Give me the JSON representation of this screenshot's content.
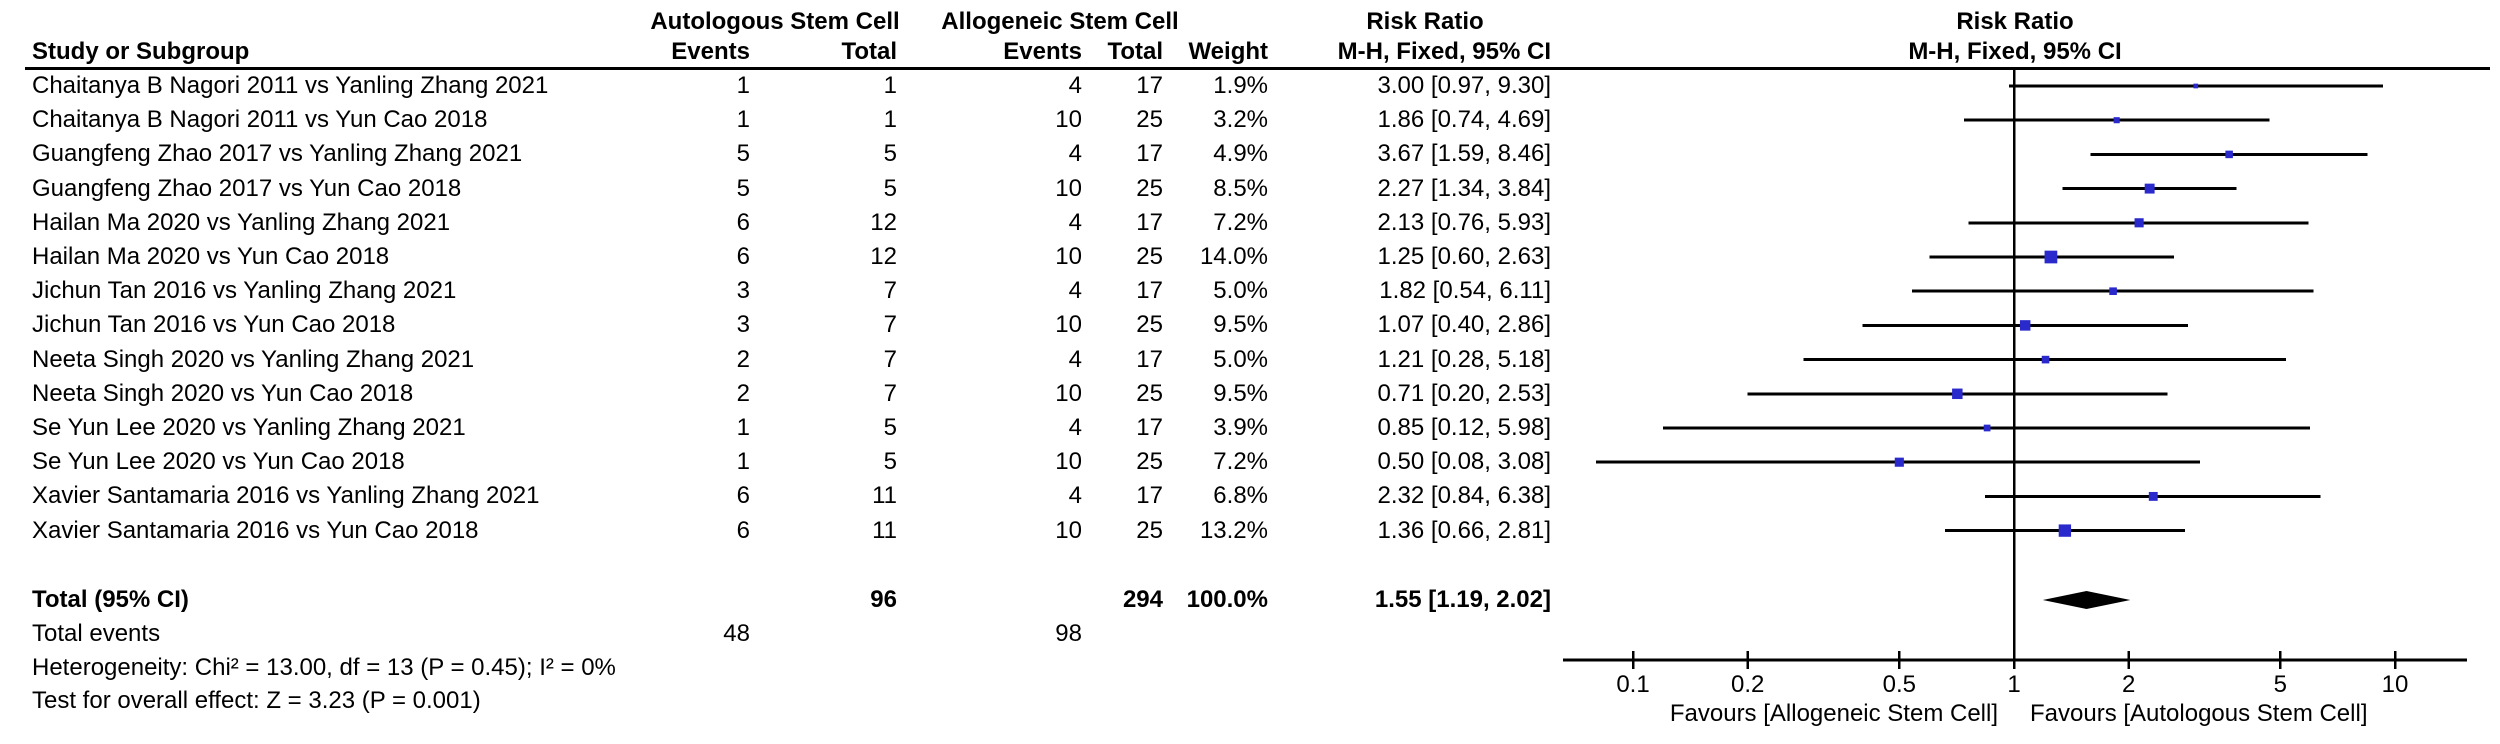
{
  "headers": {
    "study_col": "Study or Subgroup",
    "group_auto": "Autologous Stem Cell",
    "group_allo": "Allogeneic Stem Cell",
    "events": "Events",
    "total": "Total",
    "weight": "Weight",
    "risk_ratio": "Risk Ratio",
    "mh_fixed": "M-H, Fixed, 95% CI"
  },
  "plot_header": {
    "risk_ratio": "Risk Ratio",
    "mh_fixed": "M-H, Fixed, 95% CI"
  },
  "footnotes": {
    "total_label": "Total (95% CI)",
    "total_events_label": "Total events",
    "heterogeneity": "Heterogeneity: Chi² = 13.00, df = 13 (P = 0.45); I² = 0%",
    "overall_effect": "Test for overall effect: Z = 3.23 (P = 0.001)"
  },
  "chart_data": {
    "type": "scatter",
    "subtype": "forest_plot",
    "effect_measure": "Risk Ratio, M-H, Fixed, 95% CI",
    "x_scale": "log",
    "x_ticks": [
      0.1,
      0.2,
      0.5,
      1,
      2,
      5,
      10
    ],
    "xlim": [
      0.066,
      15.4
    ],
    "favours_left": "Favours [Allogeneic Stem Cell]",
    "favours_right": "Favours [Autologous Stem Cell]",
    "marker_color": "#2929cc",
    "line_color": "#000000",
    "studies": [
      {
        "study": "Chaitanya B Nagori 2011 vs Yanling Zhang 2021",
        "events_auto": 1,
        "total_auto": 1,
        "events_allo": 4,
        "total_allo": 17,
        "weight_pct": 1.9,
        "rr": 3.0,
        "ci_low": 0.97,
        "ci_high": 9.3
      },
      {
        "study": "Chaitanya B Nagori 2011 vs Yun Cao 2018",
        "events_auto": 1,
        "total_auto": 1,
        "events_allo": 10,
        "total_allo": 25,
        "weight_pct": 3.2,
        "rr": 1.86,
        "ci_low": 0.74,
        "ci_high": 4.69
      },
      {
        "study": "Guangfeng Zhao 2017 vs Yanling Zhang 2021",
        "events_auto": 5,
        "total_auto": 5,
        "events_allo": 4,
        "total_allo": 17,
        "weight_pct": 4.9,
        "rr": 3.67,
        "ci_low": 1.59,
        "ci_high": 8.46
      },
      {
        "study": "Guangfeng Zhao 2017 vs Yun Cao 2018",
        "events_auto": 5,
        "total_auto": 5,
        "events_allo": 10,
        "total_allo": 25,
        "weight_pct": 8.5,
        "rr": 2.27,
        "ci_low": 1.34,
        "ci_high": 3.84
      },
      {
        "study": "Hailan Ma 2020 vs Yanling Zhang 2021",
        "events_auto": 6,
        "total_auto": 12,
        "events_allo": 4,
        "total_allo": 17,
        "weight_pct": 7.2,
        "rr": 2.13,
        "ci_low": 0.76,
        "ci_high": 5.93
      },
      {
        "study": "Hailan Ma 2020 vs Yun Cao 2018",
        "events_auto": 6,
        "total_auto": 12,
        "events_allo": 10,
        "total_allo": 25,
        "weight_pct": 14.0,
        "rr": 1.25,
        "ci_low": 0.6,
        "ci_high": 2.63
      },
      {
        "study": "Jichun Tan 2016 vs Yanling Zhang 2021",
        "events_auto": 3,
        "total_auto": 7,
        "events_allo": 4,
        "total_allo": 17,
        "weight_pct": 5.0,
        "rr": 1.82,
        "ci_low": 0.54,
        "ci_high": 6.11
      },
      {
        "study": "Jichun Tan 2016 vs Yun Cao 2018",
        "events_auto": 3,
        "total_auto": 7,
        "events_allo": 10,
        "total_allo": 25,
        "weight_pct": 9.5,
        "rr": 1.07,
        "ci_low": 0.4,
        "ci_high": 2.86
      },
      {
        "study": "Neeta Singh 2020 vs Yanling Zhang 2021",
        "events_auto": 2,
        "total_auto": 7,
        "events_allo": 4,
        "total_allo": 17,
        "weight_pct": 5.0,
        "rr": 1.21,
        "ci_low": 0.28,
        "ci_high": 5.18
      },
      {
        "study": "Neeta Singh 2020 vs Yun Cao 2018",
        "events_auto": 2,
        "total_auto": 7,
        "events_allo": 10,
        "total_allo": 25,
        "weight_pct": 9.5,
        "rr": 0.71,
        "ci_low": 0.2,
        "ci_high": 2.53
      },
      {
        "study": "Se Yun Lee 2020 vs Yanling Zhang 2021",
        "events_auto": 1,
        "total_auto": 5,
        "events_allo": 4,
        "total_allo": 17,
        "weight_pct": 3.9,
        "rr": 0.85,
        "ci_low": 0.12,
        "ci_high": 5.98
      },
      {
        "study": "Se Yun Lee 2020 vs Yun Cao 2018",
        "events_auto": 1,
        "total_auto": 5,
        "events_allo": 10,
        "total_allo": 25,
        "weight_pct": 7.2,
        "rr": 0.5,
        "ci_low": 0.08,
        "ci_high": 3.08
      },
      {
        "study": "Xavier Santamaria 2016 vs Yanling Zhang 2021",
        "events_auto": 6,
        "total_auto": 11,
        "events_allo": 4,
        "total_allo": 17,
        "weight_pct": 6.8,
        "rr": 2.32,
        "ci_low": 0.84,
        "ci_high": 6.38
      },
      {
        "study": "Xavier Santamaria 2016 vs Yun Cao 2018",
        "events_auto": 6,
        "total_auto": 11,
        "events_allo": 10,
        "total_allo": 25,
        "weight_pct": 13.2,
        "rr": 1.36,
        "ci_low": 0.66,
        "ci_high": 2.81
      }
    ],
    "total": {
      "total_auto": 96,
      "total_allo": 294,
      "weight_pct": 100.0,
      "rr": 1.55,
      "ci_low": 1.19,
      "ci_high": 2.02,
      "total_events_auto": 48,
      "total_events_allo": 98
    }
  }
}
